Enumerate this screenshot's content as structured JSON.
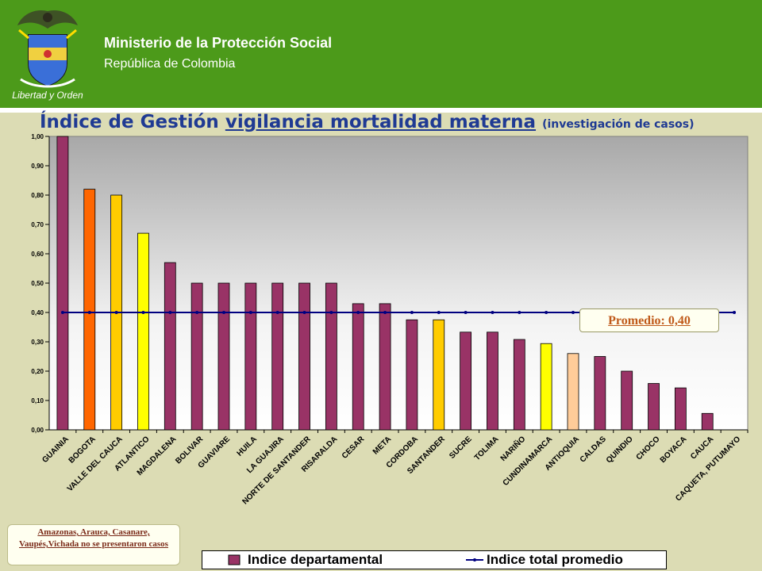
{
  "header": {
    "ministry": "Ministerio de la Protección Social",
    "republic": "República de Colombia",
    "logo_motto": "Libertad y Orden",
    "bg_color": "#4c9a1a"
  },
  "slide": {
    "title_part1": "Índice de Gestión",
    "title_part2": "vigilancia mortalidad materna",
    "title_part3": "(investigación de casos)"
  },
  "note": {
    "text": "Amazonas, Arauca, Casanare, Vaupés,Vichada no se presentaron casos"
  },
  "promedio_label": "Promedio: 0,40",
  "chart_data": {
    "type": "bar",
    "categories": [
      "GUAINIA",
      "BOGOTA",
      "VALLE DEL CAUCA",
      "ATLANTICO",
      "MAGDALENA",
      "BOLIVAR",
      "GUAVIARE",
      "HUILA",
      "LA GUAJIRA",
      "NORTE DE SANTANDER",
      "RISARALDA",
      "CESAR",
      "META",
      "CORDOBA",
      "SANTANDER",
      "SUCRE",
      "TOLIMA",
      "NARIÑO",
      "CUNDINAMARCA",
      "ANTIOQUIA",
      "CALDAS",
      "QUINDIO",
      "CHOCO",
      "BOYACA",
      "CAUCA",
      "CAQUETA, PUTUMAYO"
    ],
    "series": [
      {
        "name": "Indice departamental",
        "values": [
          1.0,
          0.82,
          0.8,
          0.67,
          0.57,
          0.5,
          0.5,
          0.5,
          0.5,
          0.5,
          0.5,
          0.43,
          0.43,
          0.375,
          0.375,
          0.333,
          0.333,
          0.308,
          0.294,
          0.26,
          0.25,
          0.2,
          0.158,
          0.143,
          0.056,
          0.0
        ],
        "colors": [
          "#993366",
          "#ff6600",
          "#ffcc00",
          "#ffff00",
          "#993366",
          "#993366",
          "#993366",
          "#993366",
          "#993366",
          "#993366",
          "#993366",
          "#993366",
          "#993366",
          "#993366",
          "#ffcc00",
          "#993366",
          "#993366",
          "#993366",
          "#ffff00",
          "#ffcc99",
          "#993366",
          "#993366",
          "#993366",
          "#993366",
          "#993366",
          "#993366"
        ]
      },
      {
        "name": "Indice total promedio",
        "type": "line",
        "value": 0.4,
        "color": "#000080"
      }
    ],
    "ylim": [
      0,
      1.0
    ],
    "yticks": [
      "0,00",
      "0,10",
      "0,20",
      "0,30",
      "0,40",
      "0,50",
      "0,60",
      "0,70",
      "0,80",
      "0,90",
      "1,00"
    ],
    "grid": false,
    "legend_position": "bottom"
  }
}
